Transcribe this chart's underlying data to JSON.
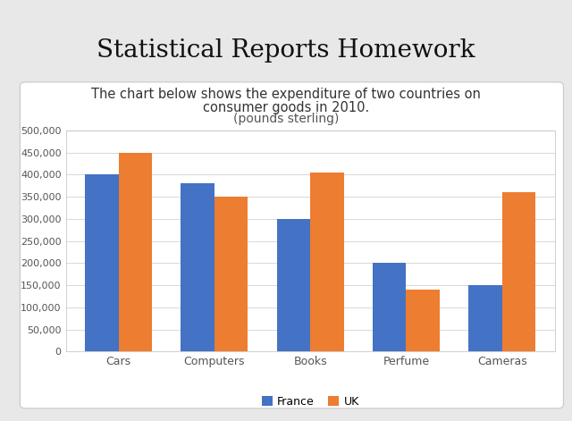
{
  "title": "Statistical Reports Homework",
  "subtitle_line1": "The chart below shows the expenditure of two countries on",
  "subtitle_line2": "consumer goods in 2010.",
  "subtitle_line3": "(pounds sterling)",
  "categories": [
    "Cars",
    "Computers",
    "Books",
    "Perfume",
    "Cameras"
  ],
  "france": [
    400000,
    380000,
    300000,
    200000,
    150000
  ],
  "uk": [
    450000,
    350000,
    405000,
    140000,
    360000
  ],
  "france_color": "#4472C4",
  "uk_color": "#ED7D31",
  "ylim": [
    0,
    500000
  ],
  "yticks": [
    0,
    50000,
    100000,
    150000,
    200000,
    250000,
    300000,
    350000,
    400000,
    450000,
    500000
  ],
  "fig_bg": "#e8e8e8",
  "box_bg": "#ffffff",
  "box_border": "#c8c8c8",
  "grid_color": "#d8d8d8",
  "title_fontsize": 20,
  "subtitle_fontsize": 10.5,
  "tick_fontsize": 8,
  "cat_fontsize": 9,
  "legend_labels": [
    "France",
    "UK"
  ]
}
